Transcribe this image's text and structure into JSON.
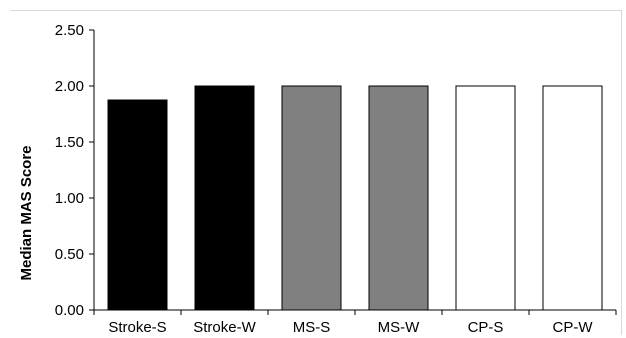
{
  "chart_data": {
    "type": "bar",
    "title": "",
    "xlabel": "",
    "ylabel": "Median MAS Score",
    "ylim": [
      0,
      2.5
    ],
    "yticks": [
      "0.00",
      "0.50",
      "1.00",
      "1.50",
      "2.00",
      "2.50"
    ],
    "categories": [
      "Stroke-S",
      "Stroke-W",
      "MS-S",
      "MS-W",
      "CP-S",
      "CP-W"
    ],
    "values": [
      1.875,
      2.0,
      2.0,
      2.0,
      2.0,
      2.0
    ],
    "bar_colors": [
      "#000000",
      "#000000",
      "#808080",
      "#808080",
      "#ffffff",
      "#ffffff"
    ],
    "bar_edge_color": "#000000",
    "grid": false,
    "legend": "none"
  }
}
